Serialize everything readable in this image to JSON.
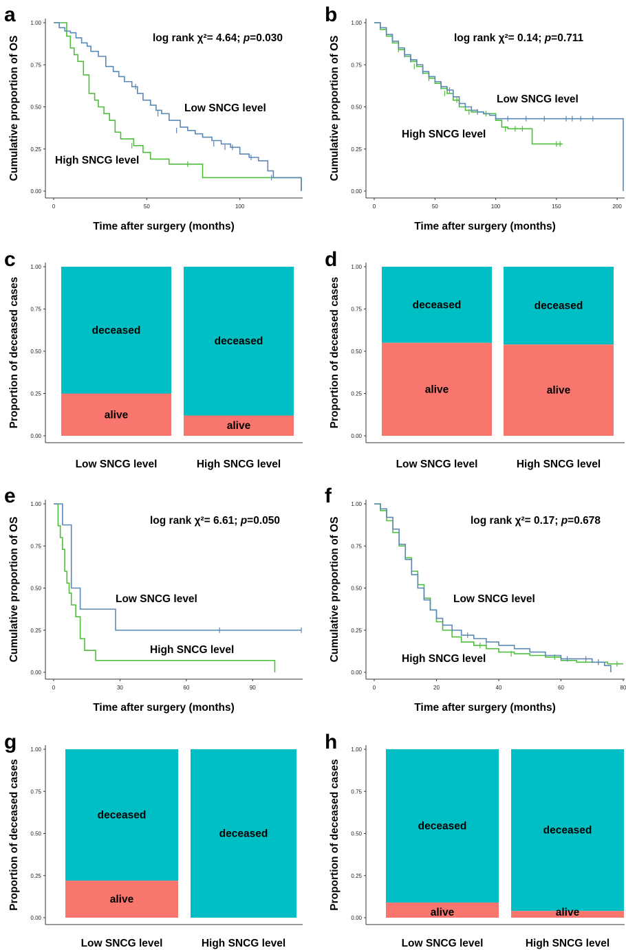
{
  "colors": {
    "low": "#5b87b5",
    "high": "#4dbe3a",
    "deceased": "#00bfc4",
    "alive": "#f8766d",
    "axis": "#333333"
  },
  "panels": [
    {
      "letter": "a",
      "kind": "km",
      "ylabel": "Cumulative proportion of OS",
      "xlabel": "Time after surgery  (months)",
      "yticks": [
        "0.00",
        "0.25",
        "0.50",
        "0.75",
        "1.00"
      ],
      "xticks": [
        "0",
        "50",
        "100"
      ],
      "stat": {
        "prefix": "log rank χ²= 4.64; ",
        "p": "p",
        "suffix": "=0.030"
      },
      "low_label": "Low SNCG level",
      "high_label": "High SNCG level"
    },
    {
      "letter": "b",
      "kind": "km",
      "ylabel": "Cumulative proportion of OS",
      "xlabel": "Time after surgery  (months)",
      "yticks": [
        "0.00",
        "0.25",
        "0.50",
        "0.75",
        "1.00"
      ],
      "xticks": [
        "0",
        "50",
        "100",
        "150",
        "200"
      ],
      "stat": {
        "prefix": "log rank χ²= 0.14; ",
        "p": "p",
        "suffix": "=0.711"
      },
      "low_label": "Low SNCG level",
      "high_label": "High SNCG level"
    },
    {
      "letter": "c",
      "kind": "bar",
      "ylabel": "Proportion  of deceased cases",
      "yticks": [
        "0.00",
        "0.25",
        "0.50",
        "0.75",
        "1.00"
      ],
      "categories": [
        "Low SNCG level",
        "High SNCG level"
      ],
      "deceased_label": "deceased",
      "alive_label": "alive"
    },
    {
      "letter": "d",
      "kind": "bar",
      "ylabel": "Proportion  of deceased cases",
      "yticks": [
        "0.00",
        "0.25",
        "0.50",
        "0.75",
        "1.00"
      ],
      "categories": [
        "Low SNCG level",
        "High SNCG level"
      ],
      "deceased_label": "deceased",
      "alive_label": "alive"
    },
    {
      "letter": "e",
      "kind": "km",
      "ylabel": "Cumulative proportion of OS",
      "xlabel": "Time after surgery  (months)",
      "yticks": [
        "0.00",
        "0.25",
        "0.50",
        "0.75",
        "1.00"
      ],
      "xticks": [
        "0",
        "30",
        "60",
        "90"
      ],
      "stat": {
        "prefix": "log rank χ²= 6.61; ",
        "p": "p",
        "suffix": "=0.050"
      },
      "low_label": "Low SNCG level",
      "high_label": "High SNCG level"
    },
    {
      "letter": "f",
      "kind": "km",
      "ylabel": "Cumulative proportion of OS",
      "xlabel": "Time after surgery  (months)",
      "yticks": [
        "0.00",
        "0.25",
        "0.50",
        "0.75",
        "1.00"
      ],
      "xticks": [
        "0",
        "20",
        "40",
        "60",
        "80"
      ],
      "stat": {
        "prefix": "log rank χ²= 0.17; ",
        "p": "p",
        "suffix": "=0.678"
      },
      "low_label": "Low SNCG level",
      "high_label": "High SNCG level"
    },
    {
      "letter": "g",
      "kind": "bar",
      "ylabel": "Proportion  of deceased cases",
      "yticks": [
        "0.00",
        "0.25",
        "0.50",
        "0.75",
        "1.00"
      ],
      "categories": [
        "Low SNCG level",
        "High SNCG level"
      ],
      "deceased_label": "deceased",
      "alive_label": "alive"
    },
    {
      "letter": "h",
      "kind": "bar",
      "ylabel": "Proportion  of deceased cases",
      "yticks": [
        "0.00",
        "0.25",
        "0.50",
        "0.75",
        "1.00"
      ],
      "categories": [
        "Low SNCG level",
        "High SNCG level"
      ],
      "deceased_label": "deceased",
      "alive_label": "alive"
    }
  ],
  "chart_data": [
    {
      "panel": "a",
      "type": "line",
      "step": true,
      "xlabel": "Time after surgery  (months)",
      "ylabel": "Cumulative proportion of OS",
      "xlim": [
        0,
        133
      ],
      "ylim": [
        0,
        1
      ],
      "annotation": "log rank χ²= 4.64; p=0.030",
      "series": [
        {
          "name": "Low SNCG level",
          "x": [
            0,
            3,
            6,
            9,
            12,
            15,
            18,
            20,
            24,
            28,
            32,
            35,
            38,
            42,
            45,
            48,
            52,
            55,
            58,
            62,
            68,
            72,
            76,
            80,
            85,
            90,
            95,
            100,
            105,
            110,
            115,
            118,
            133
          ],
          "y": [
            1.0,
            0.97,
            0.95,
            0.94,
            0.91,
            0.88,
            0.86,
            0.83,
            0.8,
            0.74,
            0.71,
            0.68,
            0.65,
            0.62,
            0.58,
            0.54,
            0.51,
            0.48,
            0.46,
            0.42,
            0.38,
            0.36,
            0.34,
            0.32,
            0.3,
            0.28,
            0.26,
            0.22,
            0.2,
            0.18,
            0.12,
            0.08,
            0.0
          ],
          "censor_x": [
            44,
            56,
            66,
            86,
            92,
            96,
            106,
            117
          ],
          "censor_y": [
            0.62,
            0.46,
            0.36,
            0.28,
            0.26,
            0.26,
            0.2,
            0.08
          ]
        },
        {
          "name": "High SNCG level",
          "x": [
            0,
            7,
            9,
            11,
            13,
            16,
            19,
            22,
            24,
            27,
            30,
            33,
            36,
            40,
            43,
            48,
            52,
            62,
            80,
            118,
            133
          ],
          "y": [
            1.0,
            0.92,
            0.85,
            0.81,
            0.77,
            0.69,
            0.58,
            0.54,
            0.5,
            0.46,
            0.42,
            0.35,
            0.31,
            0.31,
            0.27,
            0.23,
            0.19,
            0.16,
            0.08,
            0.08,
            0.0
          ],
          "censor_x": [
            42,
            72
          ],
          "censor_y": [
            0.27,
            0.16
          ]
        }
      ]
    },
    {
      "panel": "b",
      "type": "line",
      "step": true,
      "xlabel": "Time after surgery  (months)",
      "ylabel": "Cumulative proportion of OS",
      "xlim": [
        0,
        205
      ],
      "ylim": [
        0,
        1
      ],
      "annotation": "log rank χ²= 0.14; p=0.711",
      "series": [
        {
          "name": "Low SNCG level",
          "x": [
            0,
            5,
            10,
            15,
            20,
            25,
            30,
            35,
            40,
            45,
            50,
            55,
            60,
            65,
            70,
            75,
            80,
            85,
            90,
            95,
            100,
            110,
            120,
            140,
            160,
            180,
            200,
            205
          ],
          "y": [
            1.0,
            0.97,
            0.93,
            0.89,
            0.85,
            0.81,
            0.78,
            0.75,
            0.71,
            0.68,
            0.65,
            0.62,
            0.6,
            0.56,
            0.52,
            0.5,
            0.48,
            0.47,
            0.46,
            0.45,
            0.43,
            0.43,
            0.43,
            0.43,
            0.43,
            0.43,
            0.43,
            0.0
          ],
          "censor_x": [
            25,
            30,
            40,
            55,
            62,
            70,
            85,
            110,
            125,
            140,
            158,
            163,
            170,
            180
          ],
          "censor_y": [
            0.81,
            0.78,
            0.71,
            0.62,
            0.6,
            0.52,
            0.47,
            0.43,
            0.43,
            0.43,
            0.43,
            0.43,
            0.43,
            0.43
          ]
        },
        {
          "name": "High SNCG level",
          "x": [
            0,
            5,
            10,
            15,
            20,
            25,
            30,
            35,
            40,
            45,
            50,
            55,
            60,
            65,
            70,
            75,
            80,
            90,
            100,
            105,
            110,
            128,
            130,
            155
          ],
          "y": [
            1.0,
            0.96,
            0.92,
            0.88,
            0.84,
            0.8,
            0.77,
            0.74,
            0.7,
            0.67,
            0.64,
            0.61,
            0.58,
            0.54,
            0.5,
            0.48,
            0.47,
            0.46,
            0.42,
            0.38,
            0.37,
            0.37,
            0.28,
            0.28
          ],
          "censor_x": [
            20,
            33,
            45,
            58,
            68,
            78,
            92,
            108,
            116,
            122,
            150,
            153
          ],
          "censor_y": [
            0.84,
            0.74,
            0.67,
            0.58,
            0.54,
            0.47,
            0.46,
            0.37,
            0.37,
            0.37,
            0.28,
            0.28
          ]
        }
      ]
    },
    {
      "panel": "c",
      "type": "bar",
      "stacked": true,
      "ylabel": "Proportion  of deceased cases",
      "categories": [
        "Low SNCG level",
        "High SNCG level"
      ],
      "ylim": [
        0,
        1
      ],
      "series": [
        {
          "name": "alive",
          "values": [
            0.25,
            0.12
          ]
        },
        {
          "name": "deceased",
          "values": [
            0.75,
            0.88
          ]
        }
      ]
    },
    {
      "panel": "d",
      "type": "bar",
      "stacked": true,
      "ylabel": "Proportion  of deceased cases",
      "categories": [
        "Low SNCG level",
        "High SNCG level"
      ],
      "ylim": [
        0,
        1
      ],
      "series": [
        {
          "name": "alive",
          "values": [
            0.55,
            0.54
          ]
        },
        {
          "name": "deceased",
          "values": [
            0.45,
            0.46
          ]
        }
      ]
    },
    {
      "panel": "e",
      "type": "line",
      "step": true,
      "xlabel": "Time after surgery  (months)",
      "ylabel": "Cumulative proportion of OS",
      "xlim": [
        0,
        112
      ],
      "ylim": [
        0,
        1
      ],
      "annotation": "log rank χ²= 6.61; p=0.050",
      "series": [
        {
          "name": "Low SNCG level",
          "x": [
            0,
            4,
            8,
            12,
            28,
            112
          ],
          "y": [
            1.0,
            0.875,
            0.5,
            0.375,
            0.25,
            0.25
          ],
          "censor_x": [
            75,
            112
          ],
          "censor_y": [
            0.25,
            0.25
          ]
        },
        {
          "name": "High SNCG level",
          "x": [
            0,
            2,
            3,
            4,
            5,
            6,
            7,
            8,
            10,
            12,
            14,
            19,
            100
          ],
          "y": [
            1.0,
            0.87,
            0.8,
            0.73,
            0.6,
            0.53,
            0.47,
            0.4,
            0.33,
            0.2,
            0.13,
            0.07,
            0.0
          ],
          "censor_x": [],
          "censor_y": []
        }
      ]
    },
    {
      "panel": "f",
      "type": "line",
      "step": true,
      "xlabel": "Time after surgery  (months)",
      "ylabel": "Cumulative proportion of OS",
      "xlim": [
        0,
        80
      ],
      "ylim": [
        0,
        1
      ],
      "annotation": "log rank χ²= 0.17; p=0.678",
      "series": [
        {
          "name": "Low SNCG level",
          "x": [
            0,
            2,
            4,
            6,
            8,
            10,
            12,
            14,
            16,
            18,
            20,
            22,
            25,
            28,
            32,
            36,
            40,
            45,
            50,
            55,
            60,
            65,
            70,
            74,
            76
          ],
          "y": [
            1.0,
            0.97,
            0.92,
            0.85,
            0.76,
            0.67,
            0.58,
            0.5,
            0.43,
            0.37,
            0.32,
            0.28,
            0.25,
            0.22,
            0.2,
            0.18,
            0.16,
            0.14,
            0.12,
            0.1,
            0.08,
            0.08,
            0.06,
            0.04,
            0.0
          ],
          "censor_x": [
            30,
            36,
            62,
            68,
            72
          ],
          "censor_y": [
            0.22,
            0.18,
            0.08,
            0.08,
            0.06
          ]
        },
        {
          "name": "High SNCG level",
          "x": [
            0,
            2,
            4,
            6,
            8,
            10,
            12,
            14,
            16,
            18,
            20,
            22,
            25,
            28,
            32,
            36,
            40,
            45,
            50,
            55,
            60,
            65,
            70,
            75,
            80
          ],
          "y": [
            1.0,
            0.96,
            0.9,
            0.83,
            0.75,
            0.68,
            0.6,
            0.52,
            0.44,
            0.37,
            0.3,
            0.25,
            0.21,
            0.18,
            0.16,
            0.14,
            0.12,
            0.11,
            0.1,
            0.09,
            0.07,
            0.06,
            0.06,
            0.05,
            0.05
          ],
          "censor_x": [
            34,
            44,
            58,
            72,
            78
          ],
          "censor_y": [
            0.16,
            0.11,
            0.09,
            0.06,
            0.05
          ]
        }
      ]
    },
    {
      "panel": "g",
      "type": "bar",
      "stacked": true,
      "ylabel": "Proportion  of deceased cases",
      "categories": [
        "Low SNCG level",
        "High SNCG level"
      ],
      "ylim": [
        0,
        1
      ],
      "series": [
        {
          "name": "alive",
          "values": [
            0.22,
            0.0
          ]
        },
        {
          "name": "deceased",
          "values": [
            0.78,
            1.0
          ]
        }
      ]
    },
    {
      "panel": "h",
      "type": "bar",
      "stacked": true,
      "ylabel": "Proportion  of deceased cases",
      "categories": [
        "Low SNCG level",
        "High SNCG level"
      ],
      "ylim": [
        0,
        1
      ],
      "series": [
        {
          "name": "alive",
          "values": [
            0.09,
            0.04
          ]
        },
        {
          "name": "deceased",
          "values": [
            0.91,
            0.96
          ]
        }
      ]
    }
  ]
}
